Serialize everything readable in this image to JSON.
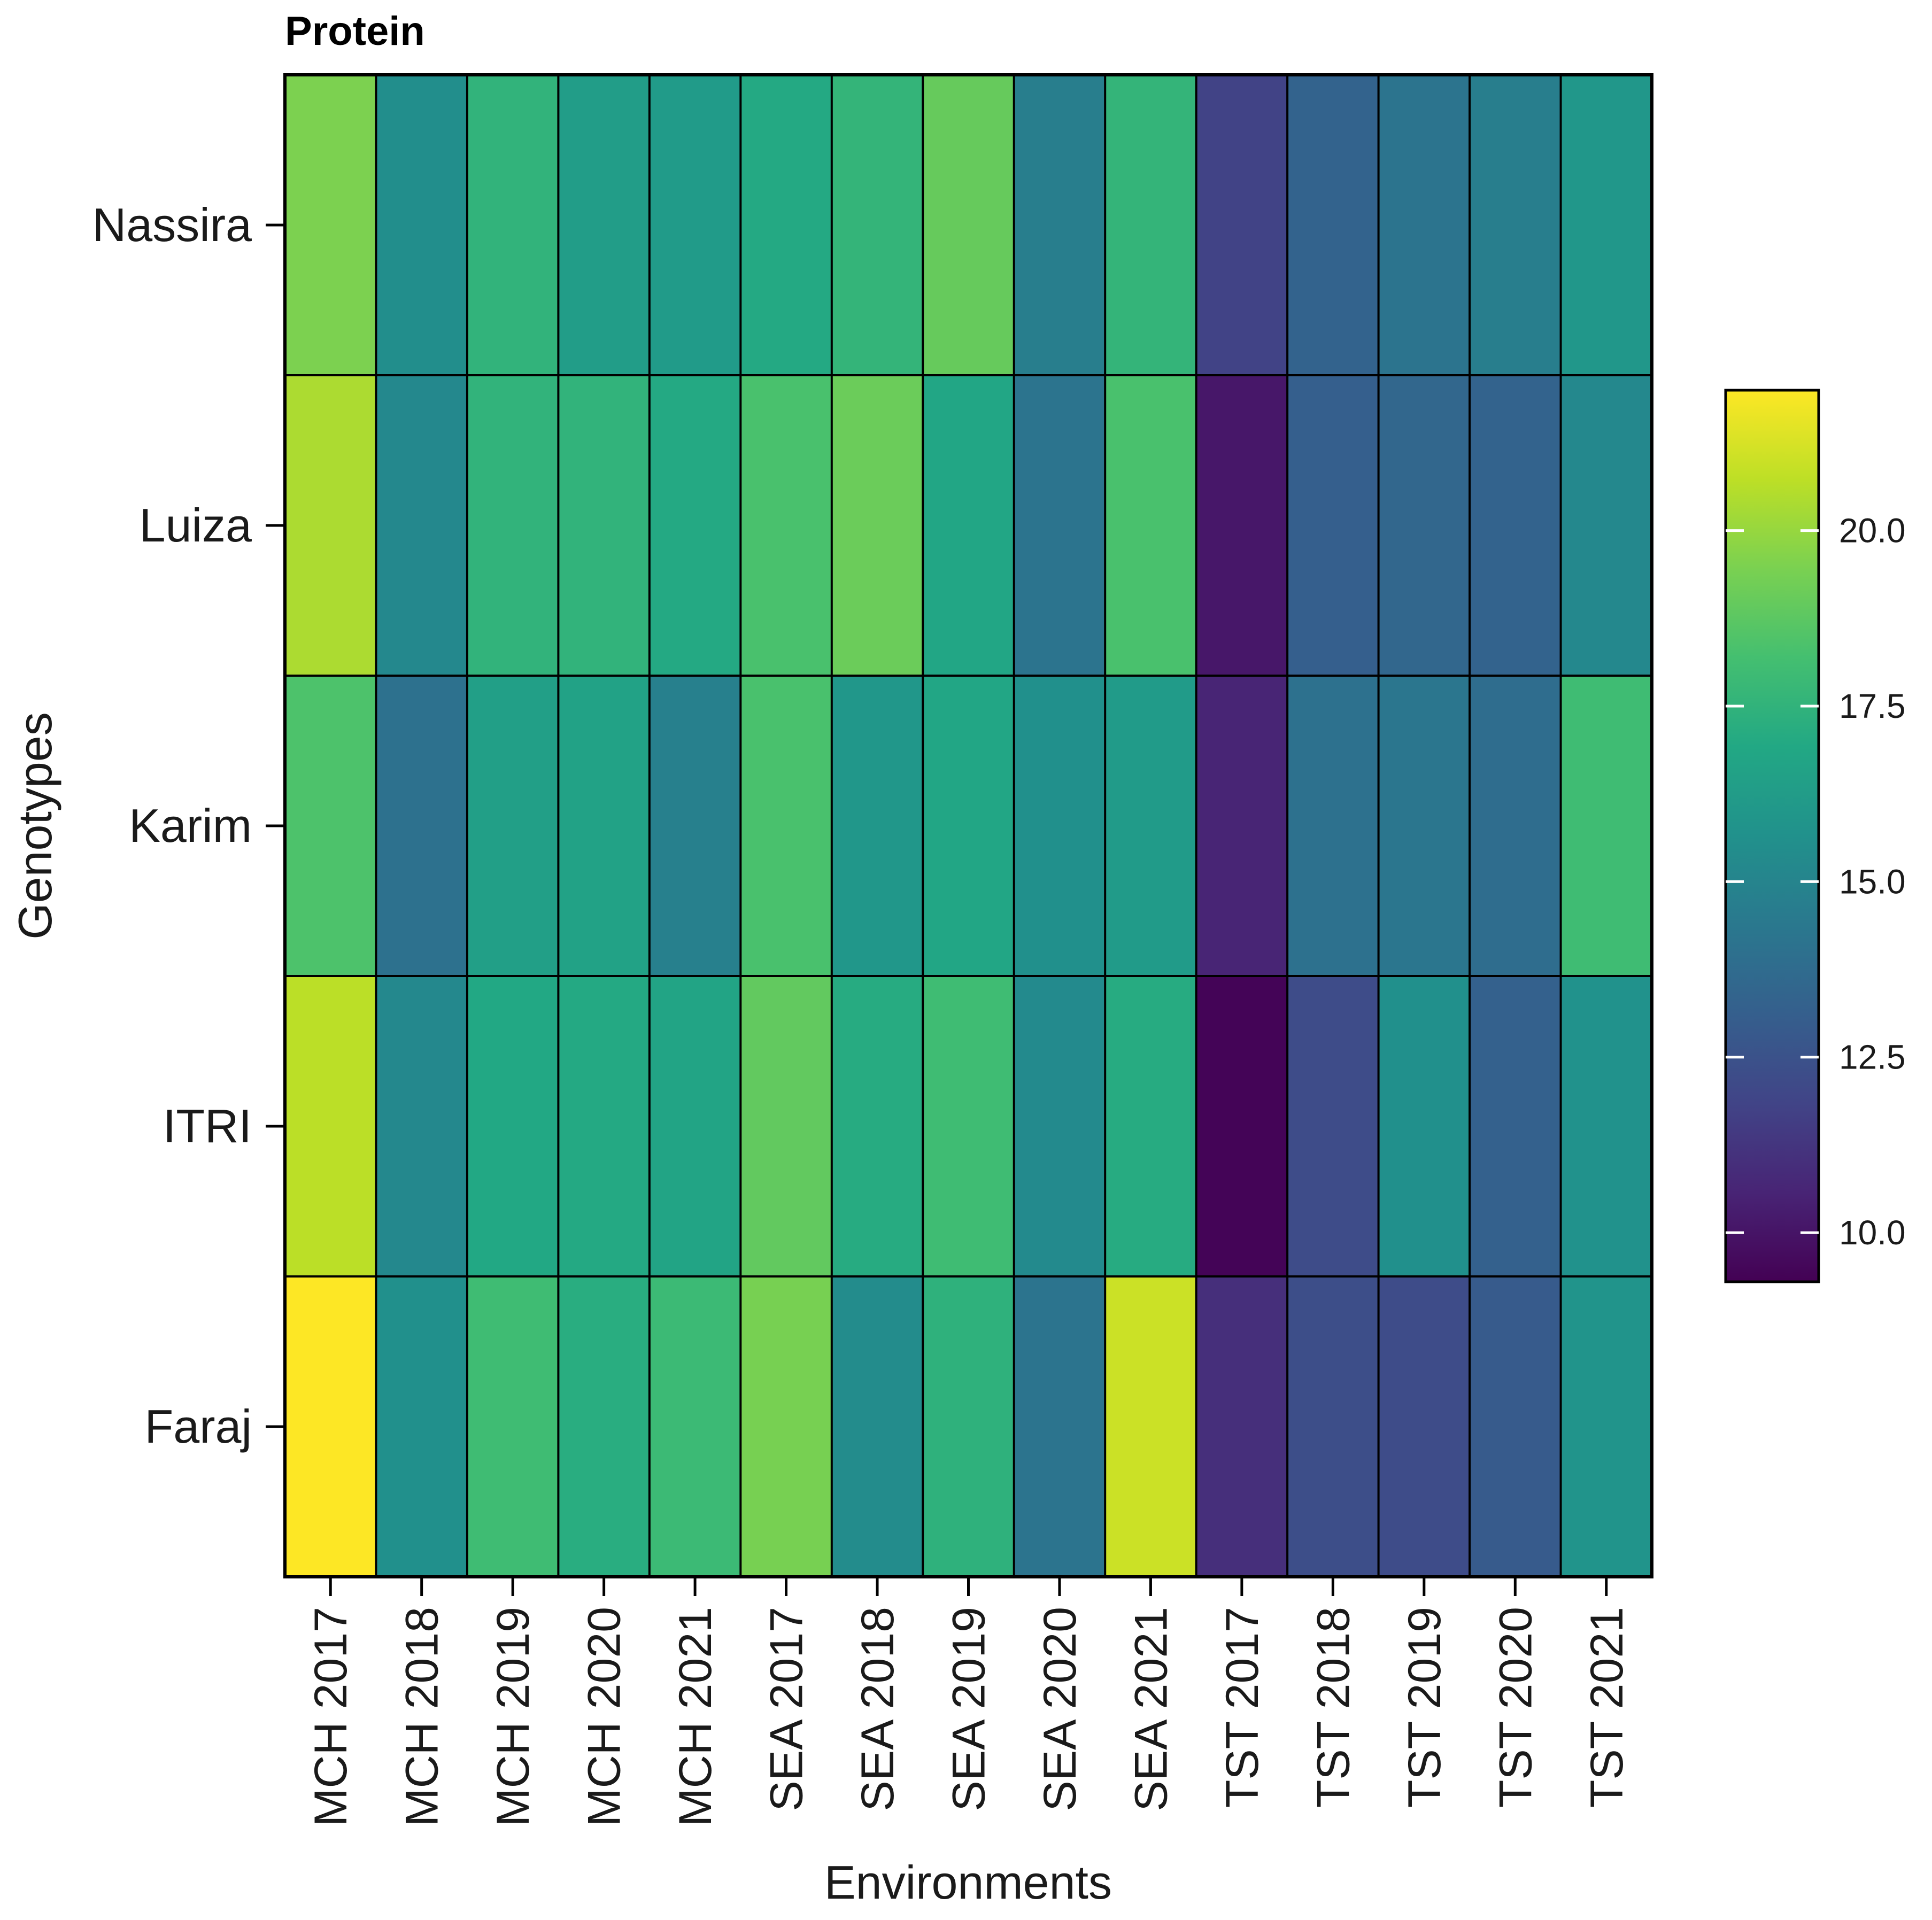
{
  "chart_data": {
    "type": "heatmap",
    "title": "Protein",
    "xlabel": "Environments",
    "ylabel": "Genotypes",
    "x": [
      "MCH 2017",
      "MCH 2018",
      "MCH 2019",
      "MCH 2020",
      "MCH 2021",
      "SEA 2017",
      "SEA 2018",
      "SEA 2019",
      "SEA 2020",
      "SEA 2021",
      "TST 2017",
      "TST 2018",
      "TST 2019",
      "TST 2020",
      "TST 2021"
    ],
    "y": [
      "Nassira",
      "Luiza",
      "Karim",
      "ITRI",
      "Faraj"
    ],
    "values": [
      [
        19.5,
        15.5,
        17.5,
        16.3,
        16.2,
        17.0,
        17.6,
        19.0,
        14.7,
        17.6,
        11.8,
        13.3,
        14.2,
        14.7,
        16.0
      ],
      [
        20.4,
        15.2,
        17.5,
        17.5,
        17.0,
        18.3,
        19.1,
        16.8,
        14.2,
        18.3,
        10.1,
        13.1,
        13.5,
        13.3,
        15.2
      ],
      [
        18.4,
        14.0,
        16.4,
        16.6,
        14.8,
        18.3,
        16.0,
        16.8,
        15.6,
        16.2,
        10.6,
        14.0,
        14.3,
        13.8,
        18.0
      ],
      [
        20.7,
        15.2,
        16.9,
        17.0,
        16.7,
        18.9,
        17.1,
        18.0,
        15.3,
        17.1,
        9.4,
        12.2,
        15.6,
        13.2,
        15.7
      ],
      [
        22.0,
        15.6,
        18.0,
        17.2,
        17.9,
        19.4,
        15.4,
        17.4,
        14.2,
        21.0,
        11.0,
        12.3,
        12.2,
        12.9,
        15.8
      ]
    ],
    "colorbar": {
      "min": 9.3,
      "max": 22.0,
      "ticks": [
        10.0,
        12.5,
        15.0,
        17.5,
        20.0
      ],
      "tick_labels": [
        "10.0",
        "12.5",
        "15.0",
        "17.5",
        "20.0"
      ],
      "colormap": "viridis"
    }
  }
}
